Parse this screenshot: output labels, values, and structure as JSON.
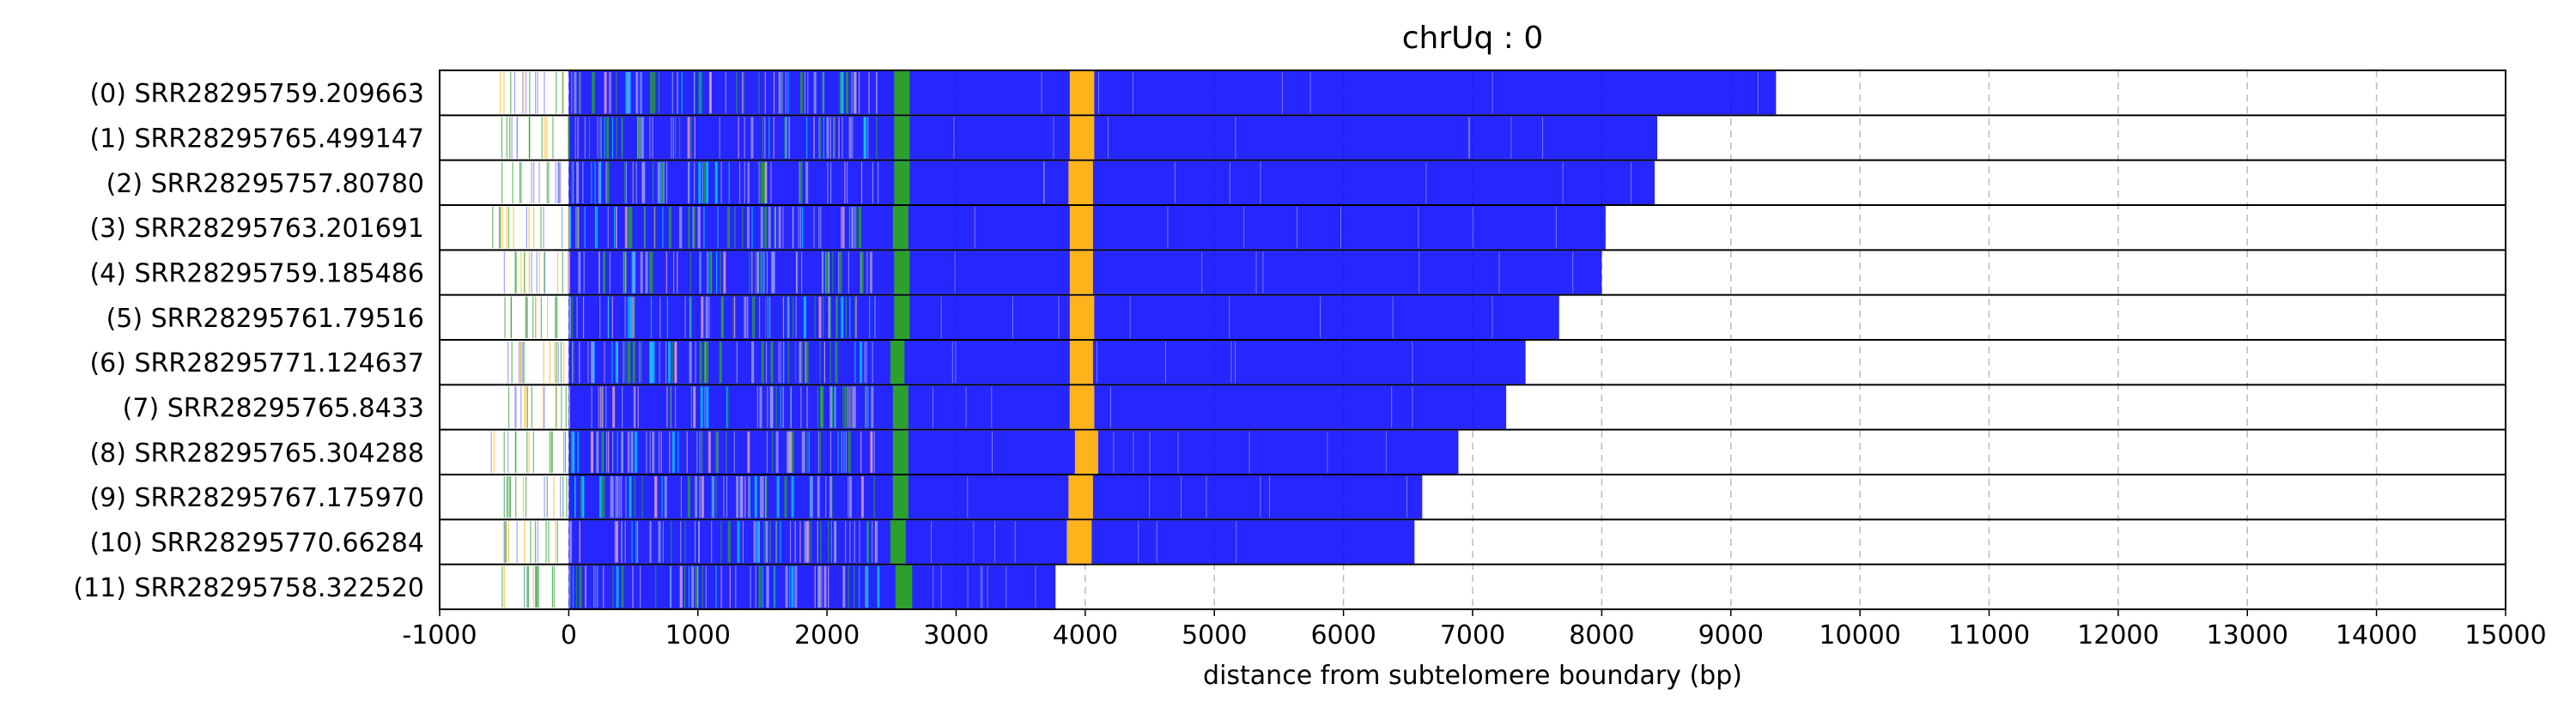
{
  "chart_data": {
    "type": "bar",
    "title": "chrUq : 0",
    "xlabel": "distance from subtelomere boundary (bp)",
    "ylabel": "",
    "xlim": [
      -1000,
      15000
    ],
    "xticks": [
      -1000,
      0,
      1000,
      2000,
      3000,
      4000,
      5000,
      6000,
      7000,
      8000,
      9000,
      10000,
      11000,
      12000,
      13000,
      14000,
      15000
    ],
    "grid": "vertical dashed",
    "colors": {
      "telomere": "#0000ff",
      "subtelomere_variant": "#00cfff",
      "green_block": "#2ca02c",
      "orange_block": "#ffb31a",
      "pink_marks": "#e6a3c8",
      "frame": "#000000",
      "grid": "#bbbbbb"
    },
    "reads": [
      {
        "label": "(0) SRR28295759.209663",
        "start": -530,
        "end": 9350,
        "orange": [
          3880,
          4070
        ],
        "green": [
          2520,
          2640
        ]
      },
      {
        "label": "(1) SRR28295765.499147",
        "start": -520,
        "end": 8430,
        "orange": [
          3880,
          4070
        ],
        "green": [
          2520,
          2640
        ]
      },
      {
        "label": "(2) SRR28295757.80780",
        "start": -540,
        "end": 8410,
        "orange": [
          3870,
          4060
        ],
        "green": [
          2520,
          2640
        ]
      },
      {
        "label": "(3) SRR28295763.201691",
        "start": -590,
        "end": 8030,
        "orange": [
          3880,
          4060
        ],
        "green": [
          2510,
          2630
        ]
      },
      {
        "label": "(4) SRR28295759.185486",
        "start": -520,
        "end": 8000,
        "orange": [
          3880,
          4060
        ],
        "green": [
          2520,
          2640
        ]
      },
      {
        "label": "(5) SRR28295761.79516",
        "start": -510,
        "end": 7670,
        "orange": [
          3880,
          4070
        ],
        "green": [
          2520,
          2640
        ]
      },
      {
        "label": "(6) SRR28295771.124637",
        "start": -530,
        "end": 7410,
        "orange": [
          3880,
          4060
        ],
        "green": [
          2490,
          2600
        ]
      },
      {
        "label": "(7) SRR28295765.8433",
        "start": -510,
        "end": 7260,
        "orange": [
          3880,
          4070
        ],
        "green": [
          2510,
          2630
        ]
      },
      {
        "label": "(8) SRR28295765.304288",
        "start": -600,
        "end": 6890,
        "orange": [
          3920,
          4100
        ],
        "green": [
          2510,
          2630
        ]
      },
      {
        "label": "(9) SRR28295767.175970",
        "start": -520,
        "end": 6610,
        "orange": [
          3870,
          4060
        ],
        "green": [
          2510,
          2630
        ]
      },
      {
        "label": "(10) SRR28295770.66284",
        "start": -520,
        "end": 6550,
        "orange": [
          3860,
          4050
        ],
        "green": [
          2490,
          2610
        ]
      },
      {
        "label": "(11) SRR28295758.322520",
        "start": -520,
        "end": 3770,
        "orange": null,
        "green": [
          2530,
          2660
        ]
      }
    ]
  }
}
